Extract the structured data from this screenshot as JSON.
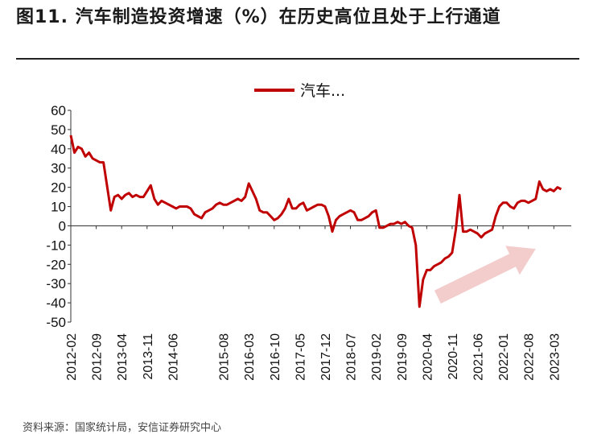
{
  "header": {
    "title": "图11. 汽车制造投资增速（%）在历史高位且处于上行通道"
  },
  "footer": {
    "source": "资料来源：国家统计局，安信证券研究中心"
  },
  "colors": {
    "series": "#c00000",
    "arrow": "#f2c7c7"
  },
  "chart_data": {
    "type": "line",
    "title": "汽车制造投资增速（%）在历史高位且处于上行通道",
    "legend": {
      "entries": [
        "汽车..."
      ],
      "position": "top-center"
    },
    "ylim": [
      -50,
      60
    ],
    "yticks": [
      60,
      50,
      40,
      30,
      20,
      10,
      0,
      -10,
      -20,
      -30,
      -40,
      -50
    ],
    "xticks": [
      "2012-02",
      "2012-09",
      "2013-04",
      "2013-11",
      "2014-06",
      "2015-08",
      "2016-03",
      "2016-10",
      "2017-05",
      "2017-12",
      "2018-07",
      "2019-02",
      "2019-09",
      "2020-04",
      "2020-11",
      "2021-06",
      "2022-01",
      "2022-08",
      "2023-03"
    ],
    "series": [
      {
        "name": "汽车...",
        "points": [
          [
            "2012-02",
            47
          ],
          [
            "2012-03",
            38
          ],
          [
            "2012-04",
            41
          ],
          [
            "2012-05",
            40
          ],
          [
            "2012-06",
            36
          ],
          [
            "2012-07",
            38
          ],
          [
            "2012-08",
            35
          ],
          [
            "2012-09",
            34
          ],
          [
            "2012-10",
            33
          ],
          [
            "2012-11",
            33
          ],
          [
            "2013-01",
            8
          ],
          [
            "2013-02",
            15
          ],
          [
            "2013-03",
            16
          ],
          [
            "2013-04",
            14
          ],
          [
            "2013-05",
            16
          ],
          [
            "2013-06",
            17
          ],
          [
            "2013-07",
            15
          ],
          [
            "2013-08",
            16
          ],
          [
            "2013-09",
            15
          ],
          [
            "2013-10",
            15
          ],
          [
            "2013-11",
            18
          ],
          [
            "2013-12",
            21
          ],
          [
            "2014-01",
            14
          ],
          [
            "2014-02",
            11
          ],
          [
            "2014-03",
            13
          ],
          [
            "2014-04",
            12
          ],
          [
            "2014-05",
            11
          ],
          [
            "2014-06",
            10
          ],
          [
            "2014-07",
            9
          ],
          [
            "2014-08",
            10
          ],
          [
            "2014-09",
            10
          ],
          [
            "2014-10",
            10
          ],
          [
            "2014-11",
            9
          ],
          [
            "2014-12",
            6
          ],
          [
            "2015-01",
            5
          ],
          [
            "2015-02",
            4
          ],
          [
            "2015-03",
            7
          ],
          [
            "2015-04",
            8
          ],
          [
            "2015-05",
            9
          ],
          [
            "2015-06",
            11
          ],
          [
            "2015-07",
            12
          ],
          [
            "2015-08",
            11
          ],
          [
            "2015-09",
            11
          ],
          [
            "2015-10",
            12
          ],
          [
            "2015-11",
            13
          ],
          [
            "2015-12",
            14
          ],
          [
            "2016-01",
            13
          ],
          [
            "2016-02",
            15
          ],
          [
            "2016-03",
            22
          ],
          [
            "2016-04",
            18
          ],
          [
            "2016-05",
            14
          ],
          [
            "2016-06",
            8
          ],
          [
            "2016-07",
            7
          ],
          [
            "2016-08",
            7
          ],
          [
            "2016-09",
            5
          ],
          [
            "2016-10",
            3
          ],
          [
            "2016-11",
            4
          ],
          [
            "2016-12",
            6
          ],
          [
            "2017-01",
            9
          ],
          [
            "2017-02",
            14
          ],
          [
            "2017-03",
            9
          ],
          [
            "2017-04",
            9
          ],
          [
            "2017-05",
            11
          ],
          [
            "2017-06",
            12
          ],
          [
            "2017-07",
            8
          ],
          [
            "2017-08",
            9
          ],
          [
            "2017-09",
            10
          ],
          [
            "2017-10",
            11
          ],
          [
            "2017-11",
            11
          ],
          [
            "2017-12",
            10
          ],
          [
            "2018-01",
            5
          ],
          [
            "2018-02",
            -3
          ],
          [
            "2018-03",
            3
          ],
          [
            "2018-04",
            5
          ],
          [
            "2018-05",
            6
          ],
          [
            "2018-06",
            7
          ],
          [
            "2018-07",
            8
          ],
          [
            "2018-08",
            7
          ],
          [
            "2018-09",
            3
          ],
          [
            "2018-10",
            3
          ],
          [
            "2018-11",
            4
          ],
          [
            "2018-12",
            5
          ],
          [
            "2019-01",
            7
          ],
          [
            "2019-02",
            8
          ],
          [
            "2019-03",
            -1
          ],
          [
            "2019-04",
            -1
          ],
          [
            "2019-05",
            0
          ],
          [
            "2019-06",
            1
          ],
          [
            "2019-07",
            1
          ],
          [
            "2019-08",
            2
          ],
          [
            "2019-09",
            1
          ],
          [
            "2019-10",
            2
          ],
          [
            "2019-11",
            0
          ],
          [
            "2019-12",
            -1
          ],
          [
            "2020-01",
            -10
          ],
          [
            "2020-02",
            -42
          ],
          [
            "2020-03",
            -28
          ],
          [
            "2020-04",
            -23
          ],
          [
            "2020-05",
            -23
          ],
          [
            "2020-06",
            -21
          ],
          [
            "2020-07",
            -20
          ],
          [
            "2020-08",
            -19
          ],
          [
            "2020-09",
            -17
          ],
          [
            "2020-10",
            -16
          ],
          [
            "2020-11",
            -14
          ],
          [
            "2020-12",
            -2
          ],
          [
            "2021-01",
            16
          ],
          [
            "2021-02",
            -3
          ],
          [
            "2021-03",
            -3
          ],
          [
            "2021-04",
            -2
          ],
          [
            "2021-05",
            -3
          ],
          [
            "2021-06",
            -4
          ],
          [
            "2021-07",
            -6
          ],
          [
            "2021-08",
            -4
          ],
          [
            "2021-09",
            -3
          ],
          [
            "2021-10",
            -2
          ],
          [
            "2021-11",
            5
          ],
          [
            "2021-12",
            10
          ],
          [
            "2022-01",
            12
          ],
          [
            "2022-02",
            12
          ],
          [
            "2022-03",
            10
          ],
          [
            "2022-04",
            9
          ],
          [
            "2022-05",
            12
          ],
          [
            "2022-06",
            13
          ],
          [
            "2022-07",
            13
          ],
          [
            "2022-08",
            12
          ],
          [
            "2022-09",
            13
          ],
          [
            "2022-10",
            14
          ],
          [
            "2022-11",
            23
          ],
          [
            "2022-12",
            19
          ],
          [
            "2023-01",
            18
          ],
          [
            "2023-02",
            19
          ],
          [
            "2023-03",
            18
          ],
          [
            "2023-04",
            20
          ],
          [
            "2023-05",
            19
          ]
        ]
      }
    ],
    "annotations": [
      {
        "type": "arrow",
        "description": "upward trend arrow",
        "from": [
          "2020-07",
          -37
        ],
        "to": [
          "2022-10",
          -12
        ]
      }
    ],
    "grid": false
  }
}
